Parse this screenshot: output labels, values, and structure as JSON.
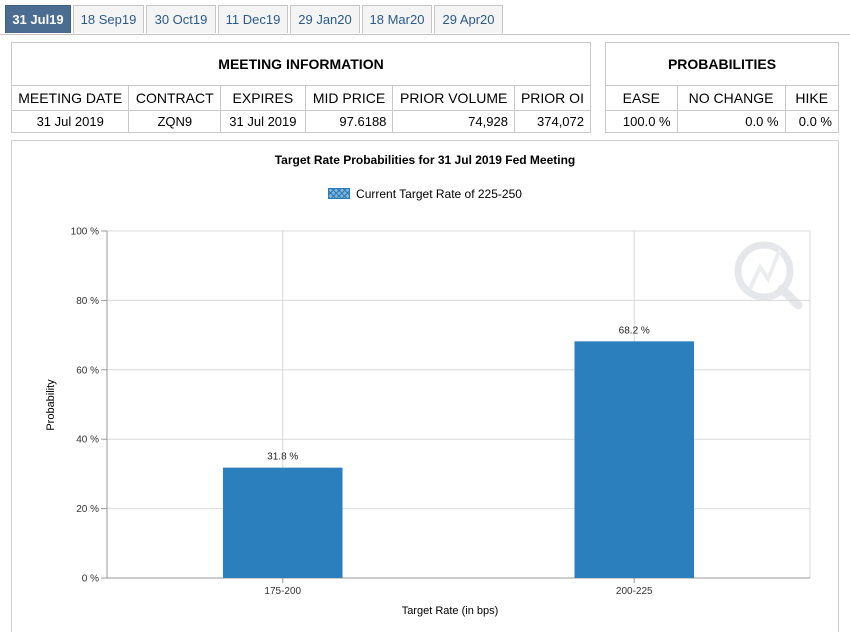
{
  "tabs": [
    {
      "label": "31 Jul19",
      "active": true
    },
    {
      "label": "18 Sep19",
      "active": false
    },
    {
      "label": "30 Oct19",
      "active": false
    },
    {
      "label": "11 Dec19",
      "active": false
    },
    {
      "label": "29 Jan20",
      "active": false
    },
    {
      "label": "18 Mar20",
      "active": false
    },
    {
      "label": "29 Apr20",
      "active": false
    }
  ],
  "meeting_info": {
    "title": "MEETING INFORMATION",
    "headers": [
      "MEETING DATE",
      "CONTRACT",
      "EXPIRES",
      "MID PRICE",
      "PRIOR VOLUME",
      "PRIOR OI"
    ],
    "values": [
      "31 Jul 2019",
      "ZQN9",
      "31 Jul 2019",
      "97.6188",
      "74,928",
      "374,072"
    ]
  },
  "probabilities": {
    "title": "PROBABILITIES",
    "headers": [
      "EASE",
      "NO CHANGE",
      "HIKE"
    ],
    "values": [
      "100.0 %",
      "0.0 %",
      "0.0 %"
    ]
  },
  "colors": {
    "bar": "#2a7fbc",
    "tab_active": "#4a6d91",
    "grid": "#d8d8d8"
  },
  "chart_data": {
    "type": "bar",
    "title": "Target Rate Probabilities for 31 Jul 2019 Fed Meeting",
    "legend": [
      "Current Target Rate of 225-250"
    ],
    "legend_position": "top-center",
    "xlabel": "Target Rate (in bps)",
    "ylabel": "Probability",
    "categories": [
      "175-200",
      "200-225"
    ],
    "values": [
      31.8,
      68.2
    ],
    "data_labels": [
      "31.8 %",
      "68.2 %"
    ],
    "ylim": [
      0,
      100
    ],
    "yticks": [
      "0 %",
      "20 %",
      "40 %",
      "60 %",
      "80 %",
      "100 %"
    ],
    "grid": true
  }
}
